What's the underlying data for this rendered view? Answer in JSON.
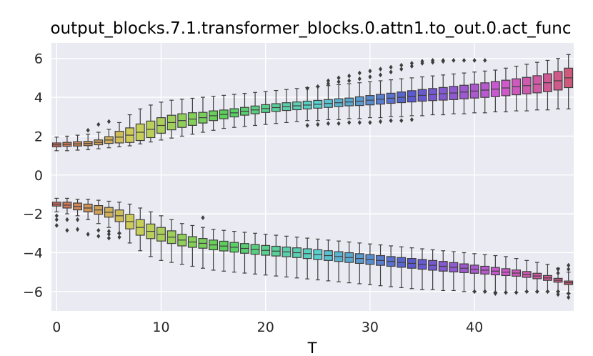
{
  "chart_data": {
    "type": "box",
    "title": "output_blocks.7.1.transformer_blocks.0.attn1.to_out.0.act_func",
    "xlabel": "T",
    "ylabel": "",
    "xlim": [
      -0.5,
      49.5
    ],
    "ylim": [
      -7.0,
      6.8
    ],
    "x_ticks": [
      0,
      10,
      20,
      30,
      40
    ],
    "y_ticks": [
      -6,
      -4,
      -2,
      0,
      2,
      4,
      6
    ],
    "x_tick_labels": [
      "0",
      "10",
      "20",
      "30",
      "40"
    ],
    "y_tick_labels": [
      "−6",
      "−4",
      "−2",
      "0",
      "2",
      "4",
      "6"
    ],
    "grid": true,
    "background": "#eaeaf2",
    "n_timesteps": 50,
    "positive_cluster": {
      "median": [
        1.55,
        1.58,
        1.6,
        1.62,
        1.68,
        1.8,
        1.95,
        2.05,
        2.2,
        2.35,
        2.55,
        2.7,
        2.8,
        2.88,
        2.95,
        3.05,
        3.12,
        3.2,
        3.28,
        3.35,
        3.42,
        3.47,
        3.52,
        3.56,
        3.6,
        3.64,
        3.68,
        3.72,
        3.76,
        3.8,
        3.85,
        3.9,
        3.95,
        4.0,
        4.05,
        4.1,
        4.14,
        4.18,
        4.22,
        4.27,
        4.32,
        4.37,
        4.42,
        4.48,
        4.54,
        4.6,
        4.67,
        4.75,
        4.85,
        5.0
      ],
      "iqr": [
        0.2,
        0.2,
        0.22,
        0.22,
        0.25,
        0.35,
        0.6,
        0.75,
        0.85,
        0.85,
        0.8,
        0.75,
        0.7,
        0.65,
        0.55,
        0.5,
        0.45,
        0.42,
        0.4,
        0.4,
        0.4,
        0.4,
        0.4,
        0.4,
        0.4,
        0.4,
        0.4,
        0.4,
        0.4,
        0.45,
        0.48,
        0.5,
        0.52,
        0.55,
        0.58,
        0.6,
        0.62,
        0.65,
        0.68,
        0.7,
        0.72,
        0.75,
        0.78,
        0.8,
        0.82,
        0.85,
        0.88,
        0.92,
        0.95,
        1.0
      ],
      "whisker_low": [
        1.25,
        1.25,
        1.28,
        1.3,
        1.35,
        1.4,
        1.45,
        1.5,
        1.6,
        1.7,
        1.8,
        1.9,
        2.0,
        2.1,
        2.2,
        2.3,
        2.4,
        2.45,
        2.5,
        2.55,
        2.6,
        2.65,
        2.7,
        2.75,
        2.8,
        2.8,
        2.85,
        2.85,
        2.9,
        2.9,
        2.95,
        2.95,
        3.0,
        3.0,
        3.05,
        3.05,
        3.1,
        3.1,
        3.15,
        3.15,
        3.2,
        3.2,
        3.25,
        3.25,
        3.3,
        3.3,
        3.35,
        3.35,
        3.4,
        3.4
      ],
      "whisker_high": [
        1.95,
        2.0,
        2.05,
        2.1,
        2.2,
        2.35,
        2.7,
        3.1,
        3.4,
        3.6,
        3.75,
        3.85,
        3.9,
        3.95,
        4.0,
        4.05,
        4.1,
        4.15,
        4.2,
        4.25,
        4.3,
        4.35,
        4.4,
        4.45,
        4.5,
        4.55,
        4.6,
        4.65,
        4.7,
        4.75,
        4.8,
        4.85,
        4.9,
        4.95,
        5.0,
        5.05,
        5.1,
        5.15,
        5.2,
        5.25,
        5.3,
        5.35,
        5.4,
        5.5,
        5.6,
        5.7,
        5.8,
        5.9,
        6.0,
        6.2
      ]
    },
    "negative_cluster": {
      "median": [
        -1.5,
        -1.55,
        -1.62,
        -1.7,
        -1.8,
        -1.92,
        -2.1,
        -2.4,
        -2.7,
        -2.9,
        -3.05,
        -3.2,
        -3.35,
        -3.45,
        -3.52,
        -3.6,
        -3.66,
        -3.72,
        -3.78,
        -3.83,
        -3.88,
        -3.92,
        -3.96,
        -4.0,
        -4.05,
        -4.1,
        -4.15,
        -4.2,
        -4.25,
        -4.3,
        -4.35,
        -4.4,
        -4.45,
        -4.5,
        -4.55,
        -4.6,
        -4.65,
        -4.7,
        -4.75,
        -4.8,
        -4.85,
        -4.9,
        -4.95,
        -5.0,
        -5.05,
        -5.12,
        -5.2,
        -5.3,
        -5.42,
        -5.55
      ],
      "iqr": [
        0.2,
        0.3,
        0.35,
        0.4,
        0.45,
        0.5,
        0.6,
        0.75,
        0.8,
        0.75,
        0.7,
        0.65,
        0.6,
        0.55,
        0.5,
        0.5,
        0.5,
        0.5,
        0.5,
        0.5,
        0.5,
        0.5,
        0.5,
        0.5,
        0.5,
        0.5,
        0.5,
        0.5,
        0.5,
        0.5,
        0.5,
        0.5,
        0.5,
        0.5,
        0.5,
        0.5,
        0.5,
        0.5,
        0.48,
        0.45,
        0.42,
        0.4,
        0.38,
        0.35,
        0.32,
        0.3,
        0.28,
        0.25,
        0.2,
        0.18
      ],
      "whisker_high": [
        -1.2,
        -1.2,
        -1.25,
        -1.25,
        -1.3,
        -1.35,
        -1.4,
        -1.5,
        -1.7,
        -1.9,
        -2.1,
        -2.3,
        -2.5,
        -2.6,
        -2.7,
        -2.8,
        -2.85,
        -2.9,
        -2.95,
        -3.0,
        -3.05,
        -3.1,
        -3.15,
        -3.2,
        -3.25,
        -3.3,
        -3.35,
        -3.4,
        -3.45,
        -3.5,
        -3.55,
        -3.6,
        -3.65,
        -3.7,
        -3.75,
        -3.8,
        -3.85,
        -3.9,
        -3.95,
        -4.0,
        -4.05,
        -4.1,
        -4.15,
        -4.2,
        -4.3,
        -4.4,
        -4.5,
        -4.6,
        -4.8,
        -5.0
      ],
      "whisker_low": [
        -1.9,
        -2.0,
        -2.1,
        -2.3,
        -2.5,
        -2.7,
        -3.0,
        -3.5,
        -3.9,
        -4.2,
        -4.4,
        -4.5,
        -4.6,
        -4.7,
        -4.8,
        -4.9,
        -4.95,
        -5.0,
        -5.05,
        -5.1,
        -5.15,
        -5.2,
        -5.25,
        -5.3,
        -5.35,
        -5.4,
        -5.45,
        -5.5,
        -5.55,
        -5.6,
        -5.65,
        -5.7,
        -5.75,
        -5.8,
        -5.85,
        -5.9,
        -5.9,
        -5.95,
        -5.95,
        -6.0,
        -6.0,
        -6.0,
        -6.05,
        -6.05,
        -6.05,
        -6.0,
        -6.0,
        -6.0,
        -6.0,
        -6.1
      ]
    },
    "outliers": [
      {
        "t": 0,
        "y": -2.6
      },
      {
        "t": 0,
        "y": -2.3
      },
      {
        "t": 0,
        "y": -2.1
      },
      {
        "t": 1,
        "y": -2.85
      },
      {
        "t": 1,
        "y": -2.3
      },
      {
        "t": 2,
        "y": -2.8
      },
      {
        "t": 2,
        "y": -2.3
      },
      {
        "t": 3,
        "y": 2.3
      },
      {
        "t": 3,
        "y": -3.05
      },
      {
        "t": 4,
        "y": 2.6
      },
      {
        "t": 4,
        "y": -3.15
      },
      {
        "t": 4,
        "y": -2.85
      },
      {
        "t": 5,
        "y": 2.75
      },
      {
        "t": 5,
        "y": -3.25
      },
      {
        "t": 5,
        "y": -3.05
      },
      {
        "t": 5,
        "y": -2.9
      },
      {
        "t": 6,
        "y": -3.2
      },
      {
        "t": 6,
        "y": -3.0
      },
      {
        "t": 14,
        "y": -2.2
      },
      {
        "t": 24,
        "y": 2.55
      },
      {
        "t": 24,
        "y": 4.45
      },
      {
        "t": 25,
        "y": 2.6
      },
      {
        "t": 25,
        "y": 4.55
      },
      {
        "t": 26,
        "y": 2.65
      },
      {
        "t": 26,
        "y": 4.7
      },
      {
        "t": 26,
        "y": 4.85
      },
      {
        "t": 27,
        "y": 2.65
      },
      {
        "t": 27,
        "y": 4.8
      },
      {
        "t": 27,
        "y": 5.0
      },
      {
        "t": 28,
        "y": 2.7
      },
      {
        "t": 28,
        "y": 4.85
      },
      {
        "t": 28,
        "y": 5.1
      },
      {
        "t": 29,
        "y": 2.7
      },
      {
        "t": 29,
        "y": 4.95
      },
      {
        "t": 29,
        "y": 5.25
      },
      {
        "t": 30,
        "y": 2.7
      },
      {
        "t": 30,
        "y": 5.05
      },
      {
        "t": 30,
        "y": 5.35
      },
      {
        "t": 31,
        "y": 2.75
      },
      {
        "t": 31,
        "y": 5.15
      },
      {
        "t": 31,
        "y": 5.45
      },
      {
        "t": 32,
        "y": 2.8
      },
      {
        "t": 32,
        "y": 5.3
      },
      {
        "t": 32,
        "y": 5.55
      },
      {
        "t": 33,
        "y": 2.8
      },
      {
        "t": 33,
        "y": 5.45
      },
      {
        "t": 33,
        "y": 5.65
      },
      {
        "t": 34,
        "y": 2.85
      },
      {
        "t": 34,
        "y": 5.6
      },
      {
        "t": 34,
        "y": 5.75
      },
      {
        "t": 35,
        "y": 5.75
      },
      {
        "t": 35,
        "y": 5.85
      },
      {
        "t": 36,
        "y": 5.8
      },
      {
        "t": 36,
        "y": 5.9
      },
      {
        "t": 37,
        "y": 5.85
      },
      {
        "t": 37,
        "y": 5.9
      },
      {
        "t": 38,
        "y": 5.9
      },
      {
        "t": 39,
        "y": 5.9
      },
      {
        "t": 40,
        "y": 5.9
      },
      {
        "t": 40,
        "y": -6.0
      },
      {
        "t": 41,
        "y": 5.9
      },
      {
        "t": 41,
        "y": -6.0
      },
      {
        "t": 42,
        "y": -6.05
      },
      {
        "t": 42,
        "y": -6.1
      },
      {
        "t": 43,
        "y": -6.05
      },
      {
        "t": 44,
        "y": -6.05
      },
      {
        "t": 45,
        "y": -6.0
      },
      {
        "t": 46,
        "y": -6.0
      },
      {
        "t": 47,
        "y": -6.0
      },
      {
        "t": 48,
        "y": -4.85
      },
      {
        "t": 48,
        "y": -5.05
      },
      {
        "t": 48,
        "y": -6.0
      },
      {
        "t": 48,
        "y": -6.15
      },
      {
        "t": 49,
        "y": -4.65
      },
      {
        "t": 49,
        "y": -4.85
      },
      {
        "t": 49,
        "y": -6.1
      },
      {
        "t": 49,
        "y": -6.3
      }
    ]
  }
}
